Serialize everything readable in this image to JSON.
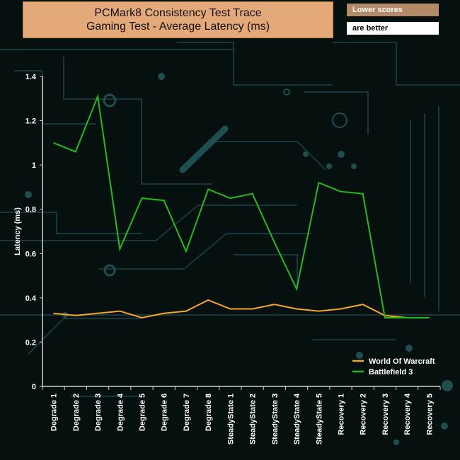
{
  "chart_data": {
    "type": "line",
    "title_line1": "PCMark8 Consistency Test Trace",
    "title_line2": "Gaming Test -  Average Latency (ms)",
    "note_line1": "Lower scores",
    "note_line2": "are better",
    "ylabel": "Latency (ms)",
    "xlabel": "",
    "ylim": [
      0,
      1.4
    ],
    "yticks": [
      0,
      0.2,
      0.4,
      0.6,
      0.8,
      1,
      1.2,
      1.4
    ],
    "ytick_labels": [
      "0",
      "0.2",
      "0.4",
      "0.6",
      "0.8",
      "1",
      "1.2",
      "1.4"
    ],
    "categories": [
      "Degrade 1",
      "Degrade 2",
      "Degrade 3",
      "Degrade 4",
      "Degrade 5",
      "Degrade 6",
      "Degrade 7",
      "Degrade 8",
      "SteadyState 1",
      "SteadyState 2",
      "SteadyState 3",
      "SteadyState 4",
      "SteadyState 5",
      "Recovery 1",
      "Recovery 2",
      "Recovery 3",
      "Recovery 4",
      "Recovery 5"
    ],
    "grid": false,
    "legend_position": "bottom-right",
    "series": [
      {
        "name": "World Of Warcraft",
        "color": "#f5a623",
        "values": [
          0.33,
          0.32,
          0.33,
          0.34,
          0.31,
          0.33,
          0.34,
          0.39,
          0.35,
          0.35,
          0.37,
          0.35,
          0.34,
          0.35,
          0.37,
          0.32,
          0.31,
          0.31
        ]
      },
      {
        "name": "Battlefield 3",
        "color": "#22bb1a",
        "values": [
          1.1,
          1.06,
          1.31,
          0.62,
          0.85,
          0.84,
          0.61,
          0.89,
          0.85,
          0.87,
          0.65,
          0.44,
          0.92,
          0.88,
          0.87,
          0.31,
          0.31,
          0.31
        ]
      }
    ]
  }
}
